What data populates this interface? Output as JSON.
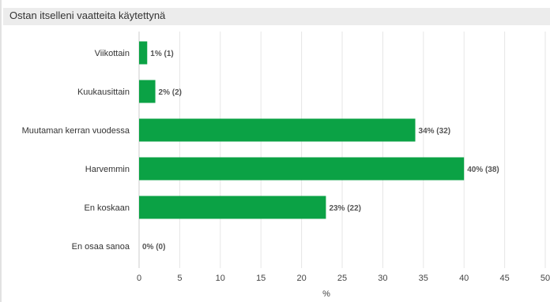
{
  "chart_data": {
    "type": "bar",
    "orientation": "horizontal",
    "title": "Ostan itselleni vaatteita käytettynä",
    "xlabel": "%",
    "ylabel": "",
    "categories": [
      "Viikottain",
      "Kuukausittain",
      "Muutaman kerran vuodessa",
      "Harvemmin",
      "En koskaan",
      "En osaa sanoa"
    ],
    "values": [
      1,
      2,
      34,
      40,
      23,
      0
    ],
    "counts": [
      1,
      2,
      32,
      38,
      22,
      0
    ],
    "data_labels": [
      "1% (1)",
      "2% (2)",
      "34% (32)",
      "40% (38)",
      "23% (22)",
      "0% (0)"
    ],
    "xlim": [
      0,
      50
    ],
    "xticks": [
      0,
      5,
      10,
      15,
      20,
      25,
      30,
      35,
      40,
      45,
      50
    ],
    "grid": true,
    "bar_color": "#0ba245",
    "grid_color": "#e6e6e6"
  }
}
